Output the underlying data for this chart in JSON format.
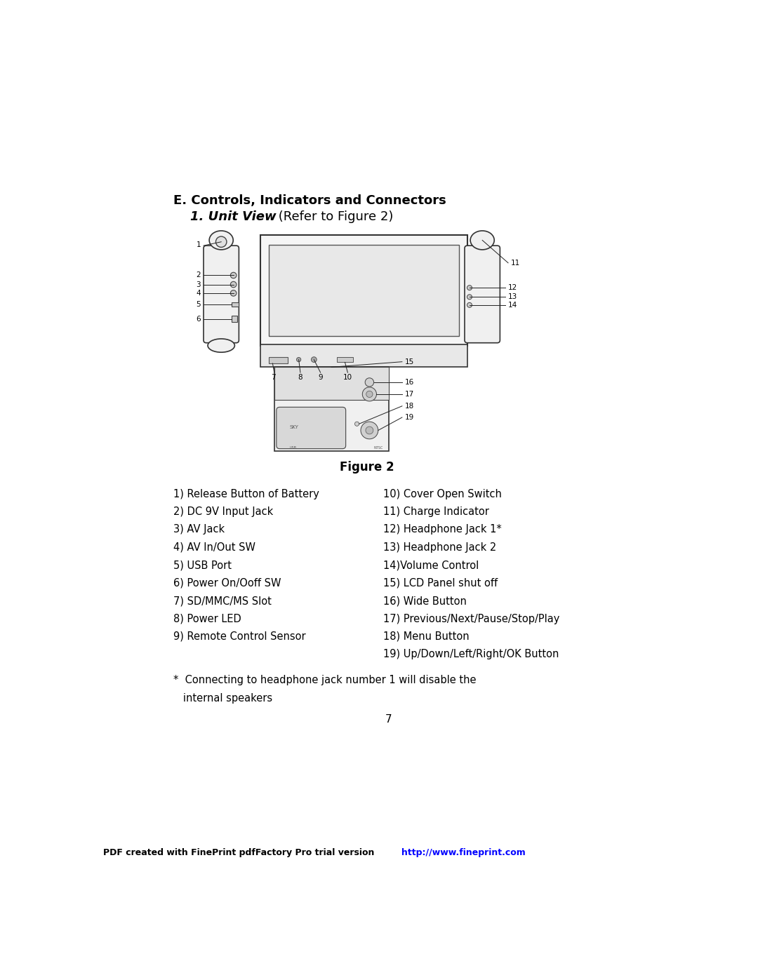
{
  "title_bold": "E. Controls, Indicators and Connectors",
  "title_sub_bold": "1. Unit View",
  "title_sub_normal": " (Refer to Figure 2)",
  "figure_caption": "Figure 2",
  "left_items": [
    "1) Release Button of Battery",
    "2) DC 9V Input Jack",
    "3) AV Jack",
    "4) AV In/Out SW",
    "5) USB Port",
    "6) Power On/Ooff SW",
    "7) SD/MMC/MS Slot",
    "8) Power LED",
    "9) Remote Control Sensor"
  ],
  "right_items": [
    "10) Cover Open Switch",
    "11) Charge Indicator",
    "12) Headphone Jack 1*",
    "13) Headphone Jack 2",
    "14)Volume Control",
    "15) LCD Panel shut off",
    "16) Wide Button",
    "17) Previous/Next/Pause/Stop/Play",
    "18) Menu Button",
    "19) Up/Down/Left/Right/OK Button"
  ],
  "footnote_line1": "*  Connecting to headphone jack number 1 will disable the",
  "footnote_line2": "   internal speakers",
  "page_number": "7",
  "footer_text": "PDF created with FinePrint pdfFactory Pro trial version ",
  "footer_link": "http://www.fineprint.com",
  "bg_color": "#ffffff",
  "text_color": "#000000",
  "link_color": "#0000ff"
}
